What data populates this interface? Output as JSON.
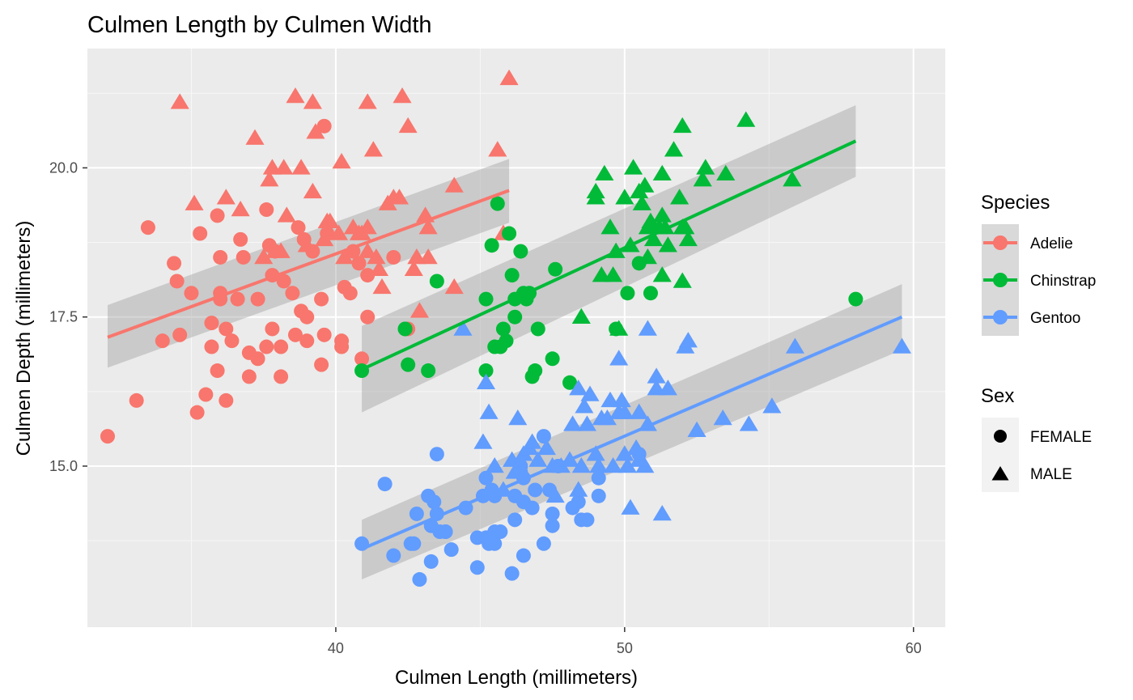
{
  "chart_data": {
    "type": "scatter",
    "title": "Culmen Length by Culmen Width",
    "xlabel": "Culmen Length (millimeters)",
    "ylabel": "Culmen Depth (millimeters)",
    "xlim": [
      31.4,
      61.1
    ],
    "ylim": [
      12.3,
      22.0
    ],
    "xticks": [
      40,
      50,
      60
    ],
    "xtick_labels": [
      "40",
      "50",
      "60"
    ],
    "yticks": [
      15.0,
      17.5,
      20.0
    ],
    "ytick_labels": [
      "15.0",
      "17.5",
      "20.0"
    ],
    "grid": true,
    "background": "#ebebeb",
    "legend_species_title": "Species",
    "legend_sex_title": "Sex",
    "legend_position": "right",
    "species": [
      {
        "name": "Adelie",
        "color": "#f8766d"
      },
      {
        "name": "Chinstrap",
        "color": "#00ba38"
      },
      {
        "name": "Gentoo",
        "color": "#619cff"
      }
    ],
    "sexes": [
      {
        "name": "FEMALE",
        "shape": "circle"
      },
      {
        "name": "MALE",
        "shape": "triangle"
      }
    ],
    "fits": [
      {
        "species": "Adelie",
        "x": [
          32.1,
          46.0
        ],
        "y": [
          17.16,
          19.62
        ],
        "se_low": [
          16.65,
          19.08
        ],
        "se_high": [
          17.7,
          20.15
        ]
      },
      {
        "species": "Chinstrap",
        "x": [
          40.9,
          58.0
        ],
        "y": [
          16.62,
          20.45
        ],
        "se_low": [
          15.9,
          19.85
        ],
        "se_high": [
          17.35,
          21.05
        ]
      },
      {
        "species": "Gentoo",
        "x": [
          40.9,
          59.6
        ],
        "y": [
          13.61,
          17.5
        ],
        "se_low": [
          13.1,
          16.95
        ],
        "se_high": [
          14.1,
          18.05
        ]
      }
    ],
    "series": [
      {
        "species": "Adelie",
        "sex": "FEMALE",
        "points": [
          [
            32.1,
            15.5
          ],
          [
            33.1,
            16.1
          ],
          [
            33.5,
            19.0
          ],
          [
            34.0,
            17.1
          ],
          [
            34.4,
            18.4
          ],
          [
            34.5,
            18.1
          ],
          [
            34.6,
            17.2
          ],
          [
            35.0,
            17.9
          ],
          [
            35.2,
            15.9
          ],
          [
            35.3,
            18.9
          ],
          [
            35.5,
            16.2
          ],
          [
            35.7,
            17.0
          ],
          [
            35.9,
            16.6
          ],
          [
            35.9,
            19.2
          ],
          [
            36.0,
            17.8
          ],
          [
            36.0,
            18.5
          ],
          [
            36.2,
            16.1
          ],
          [
            36.2,
            17.3
          ],
          [
            36.4,
            17.1
          ],
          [
            36.6,
            17.8
          ],
          [
            36.7,
            18.8
          ],
          [
            36.8,
            18.5
          ],
          [
            37.0,
            16.9
          ],
          [
            37.3,
            16.8
          ],
          [
            37.3,
            17.8
          ],
          [
            37.6,
            17.0
          ],
          [
            37.6,
            19.3
          ],
          [
            37.7,
            18.7
          ],
          [
            37.8,
            17.3
          ],
          [
            37.9,
            18.6
          ],
          [
            38.1,
            16.5
          ],
          [
            38.1,
            17.0
          ],
          [
            38.2,
            18.1
          ],
          [
            38.5,
            17.9
          ],
          [
            38.6,
            17.2
          ],
          [
            38.7,
            19.0
          ],
          [
            38.8,
            17.6
          ],
          [
            38.9,
            18.8
          ],
          [
            39.0,
            17.1
          ],
          [
            39.0,
            17.5
          ],
          [
            39.2,
            18.6
          ],
          [
            39.5,
            16.7
          ],
          [
            39.5,
            17.8
          ],
          [
            39.6,
            17.2
          ],
          [
            39.7,
            18.9
          ],
          [
            40.2,
            17.0
          ],
          [
            40.2,
            17.1
          ],
          [
            40.3,
            18.0
          ],
          [
            40.5,
            17.9
          ],
          [
            40.6,
            18.6
          ],
          [
            40.8,
            18.4
          ],
          [
            40.9,
            16.8
          ],
          [
            41.1,
            17.5
          ],
          [
            41.1,
            18.2
          ],
          [
            42.0,
            18.5
          ],
          [
            42.5,
            17.3
          ],
          [
            39.6,
            20.7
          ],
          [
            36.0,
            17.9
          ],
          [
            37.0,
            16.5
          ],
          [
            37.8,
            18.2
          ],
          [
            35.7,
            17.4
          ]
        ]
      },
      {
        "species": "Adelie",
        "sex": "MALE",
        "points": [
          [
            34.6,
            21.1
          ],
          [
            35.1,
            19.4
          ],
          [
            36.2,
            19.5
          ],
          [
            36.7,
            19.3
          ],
          [
            37.2,
            20.5
          ],
          [
            37.5,
            18.5
          ],
          [
            37.7,
            19.8
          ],
          [
            37.8,
            20.0
          ],
          [
            38.1,
            18.6
          ],
          [
            38.2,
            20.0
          ],
          [
            38.3,
            19.2
          ],
          [
            38.6,
            21.2
          ],
          [
            38.8,
            20.0
          ],
          [
            39.0,
            18.7
          ],
          [
            39.2,
            19.6
          ],
          [
            39.2,
            21.1
          ],
          [
            39.3,
            20.6
          ],
          [
            39.6,
            18.8
          ],
          [
            39.7,
            19.1
          ],
          [
            40.1,
            18.9
          ],
          [
            40.2,
            20.1
          ],
          [
            40.6,
            19.0
          ],
          [
            40.8,
            18.9
          ],
          [
            40.9,
            18.9
          ],
          [
            41.1,
            18.6
          ],
          [
            41.1,
            19.0
          ],
          [
            41.3,
            20.3
          ],
          [
            41.4,
            18.5
          ],
          [
            41.5,
            18.3
          ],
          [
            41.6,
            18.0
          ],
          [
            42.2,
            19.5
          ],
          [
            42.3,
            21.2
          ],
          [
            42.7,
            18.3
          ],
          [
            42.8,
            18.5
          ],
          [
            42.9,
            17.6
          ],
          [
            43.1,
            19.2
          ],
          [
            43.2,
            19.0
          ],
          [
            43.2,
            18.5
          ],
          [
            44.1,
            19.7
          ],
          [
            44.1,
            18.0
          ],
          [
            45.6,
            20.3
          ],
          [
            45.8,
            18.9
          ],
          [
            46.0,
            21.5
          ],
          [
            41.1,
            21.1
          ],
          [
            42.5,
            20.7
          ],
          [
            39.8,
            19.1
          ],
          [
            40.3,
            18.5
          ],
          [
            42.0,
            19.5
          ],
          [
            37.9,
            18.6
          ],
          [
            41.8,
            19.4
          ]
        ]
      },
      {
        "species": "Chinstrap",
        "sex": "FEMALE",
        "points": [
          [
            40.9,
            16.6
          ],
          [
            42.4,
            17.3
          ],
          [
            42.5,
            16.7
          ],
          [
            43.2,
            16.6
          ],
          [
            43.5,
            18.1
          ],
          [
            45.2,
            17.8
          ],
          [
            45.2,
            16.6
          ],
          [
            45.4,
            18.7
          ],
          [
            45.6,
            19.4
          ],
          [
            45.7,
            17.0
          ],
          [
            45.9,
            17.1
          ],
          [
            46.0,
            18.9
          ],
          [
            46.1,
            18.2
          ],
          [
            46.2,
            17.5
          ],
          [
            46.4,
            18.6
          ],
          [
            46.5,
            17.9
          ],
          [
            46.6,
            17.8
          ],
          [
            46.7,
            17.9
          ],
          [
            46.8,
            16.5
          ],
          [
            46.9,
            16.6
          ],
          [
            47.0,
            17.3
          ],
          [
            47.5,
            16.8
          ],
          [
            47.6,
            18.3
          ],
          [
            48.1,
            16.4
          ],
          [
            49.7,
            17.3
          ],
          [
            50.1,
            17.9
          ],
          [
            50.5,
            18.4
          ],
          [
            50.9,
            17.9
          ],
          [
            58.0,
            17.8
          ],
          [
            45.8,
            17.3
          ],
          [
            46.2,
            17.8
          ],
          [
            42.4,
            17.3
          ],
          [
            45.5,
            17.0
          ]
        ]
      },
      {
        "species": "Chinstrap",
        "sex": "MALE",
        "points": [
          [
            48.5,
            17.5
          ],
          [
            49.0,
            19.5
          ],
          [
            49.0,
            19.6
          ],
          [
            49.2,
            18.2
          ],
          [
            49.3,
            19.9
          ],
          [
            49.5,
            19.0
          ],
          [
            49.6,
            18.2
          ],
          [
            49.7,
            18.6
          ],
          [
            50.0,
            19.5
          ],
          [
            50.2,
            18.7
          ],
          [
            50.3,
            20.0
          ],
          [
            50.5,
            19.6
          ],
          [
            50.6,
            19.4
          ],
          [
            50.7,
            19.7
          ],
          [
            50.8,
            18.5
          ],
          [
            50.8,
            19.0
          ],
          [
            51.0,
            18.8
          ],
          [
            51.3,
            18.2
          ],
          [
            51.3,
            19.2
          ],
          [
            51.3,
            19.9
          ],
          [
            51.4,
            19.0
          ],
          [
            51.5,
            18.7
          ],
          [
            51.7,
            20.3
          ],
          [
            51.9,
            19.5
          ],
          [
            52.0,
            18.1
          ],
          [
            52.0,
            19.0
          ],
          [
            52.0,
            20.7
          ],
          [
            52.2,
            18.8
          ],
          [
            52.7,
            19.8
          ],
          [
            52.8,
            20.0
          ],
          [
            53.5,
            19.9
          ],
          [
            54.2,
            20.8
          ],
          [
            55.8,
            19.8
          ],
          [
            50.9,
            19.1
          ],
          [
            49.8,
            17.3
          ],
          [
            51.2,
            19.0
          ],
          [
            52.1,
            19.0
          ]
        ]
      },
      {
        "species": "Gentoo",
        "sex": "FEMALE",
        "points": [
          [
            40.9,
            13.7
          ],
          [
            41.7,
            14.7
          ],
          [
            42.0,
            13.5
          ],
          [
            42.6,
            13.7
          ],
          [
            42.7,
            13.7
          ],
          [
            42.8,
            14.2
          ],
          [
            42.9,
            13.1
          ],
          [
            43.2,
            14.5
          ],
          [
            43.3,
            13.4
          ],
          [
            43.3,
            14.0
          ],
          [
            43.4,
            14.4
          ],
          [
            43.5,
            14.2
          ],
          [
            43.5,
            15.2
          ],
          [
            43.6,
            13.9
          ],
          [
            43.8,
            13.9
          ],
          [
            44.0,
            13.6
          ],
          [
            44.5,
            14.3
          ],
          [
            44.9,
            13.8
          ],
          [
            44.9,
            13.3
          ],
          [
            45.1,
            14.5
          ],
          [
            45.2,
            13.8
          ],
          [
            45.2,
            14.8
          ],
          [
            45.3,
            13.7
          ],
          [
            45.4,
            14.6
          ],
          [
            45.5,
            13.7
          ],
          [
            45.5,
            13.9
          ],
          [
            45.5,
            14.5
          ],
          [
            45.7,
            13.9
          ],
          [
            46.1,
            13.2
          ],
          [
            46.2,
            14.1
          ],
          [
            46.2,
            14.5
          ],
          [
            46.4,
            15.0
          ],
          [
            46.5,
            13.5
          ],
          [
            46.5,
            14.4
          ],
          [
            46.5,
            14.8
          ],
          [
            46.8,
            14.3
          ],
          [
            46.9,
            14.6
          ],
          [
            47.2,
            13.7
          ],
          [
            47.2,
            15.5
          ],
          [
            47.4,
            14.6
          ],
          [
            47.5,
            14.0
          ],
          [
            47.5,
            14.2
          ],
          [
            47.7,
            15.0
          ],
          [
            48.2,
            14.3
          ],
          [
            48.4,
            14.4
          ],
          [
            48.5,
            14.1
          ],
          [
            48.7,
            14.1
          ],
          [
            49.1,
            14.5
          ],
          [
            49.1,
            14.8
          ],
          [
            50.5,
            15.2
          ],
          [
            46.4,
            14.9
          ],
          [
            43.8,
            13.9
          ],
          [
            45.3,
            13.8
          ]
        ]
      },
      {
        "species": "Gentoo",
        "sex": "MALE",
        "points": [
          [
            44.4,
            17.3
          ],
          [
            45.1,
            15.4
          ],
          [
            45.2,
            16.4
          ],
          [
            45.3,
            15.9
          ],
          [
            45.5,
            15.0
          ],
          [
            45.8,
            14.6
          ],
          [
            46.1,
            15.1
          ],
          [
            46.2,
            14.9
          ],
          [
            46.3,
            15.8
          ],
          [
            46.5,
            15.2
          ],
          [
            46.7,
            15.3
          ],
          [
            46.8,
            15.4
          ],
          [
            47.0,
            15.1
          ],
          [
            47.3,
            15.3
          ],
          [
            47.6,
            14.5
          ],
          [
            47.8,
            15.0
          ],
          [
            48.1,
            15.1
          ],
          [
            48.2,
            15.7
          ],
          [
            48.4,
            14.6
          ],
          [
            48.5,
            15.0
          ],
          [
            48.6,
            16.0
          ],
          [
            48.7,
            15.7
          ],
          [
            48.8,
            16.2
          ],
          [
            49.0,
            15.2
          ],
          [
            49.1,
            15.0
          ],
          [
            49.2,
            15.8
          ],
          [
            49.4,
            15.8
          ],
          [
            49.5,
            16.1
          ],
          [
            49.6,
            15.0
          ],
          [
            49.8,
            15.9
          ],
          [
            49.9,
            16.1
          ],
          [
            50.0,
            15.2
          ],
          [
            50.0,
            15.9
          ],
          [
            50.1,
            15.0
          ],
          [
            50.2,
            14.3
          ],
          [
            50.4,
            15.3
          ],
          [
            50.5,
            15.9
          ],
          [
            50.7,
            15.0
          ],
          [
            50.8,
            15.7
          ],
          [
            50.8,
            17.3
          ],
          [
            51.1,
            16.3
          ],
          [
            51.1,
            16.5
          ],
          [
            51.5,
            16.3
          ],
          [
            52.1,
            17.0
          ],
          [
            52.2,
            17.1
          ],
          [
            52.5,
            15.6
          ],
          [
            53.4,
            15.8
          ],
          [
            54.3,
            15.7
          ],
          [
            55.1,
            16.0
          ],
          [
            55.9,
            17.0
          ],
          [
            59.6,
            17.0
          ],
          [
            51.3,
            14.2
          ],
          [
            49.8,
            16.8
          ],
          [
            47.5,
            15.0
          ],
          [
            48.4,
            16.3
          ],
          [
            50.5,
            15.1
          ]
        ]
      }
    ]
  }
}
